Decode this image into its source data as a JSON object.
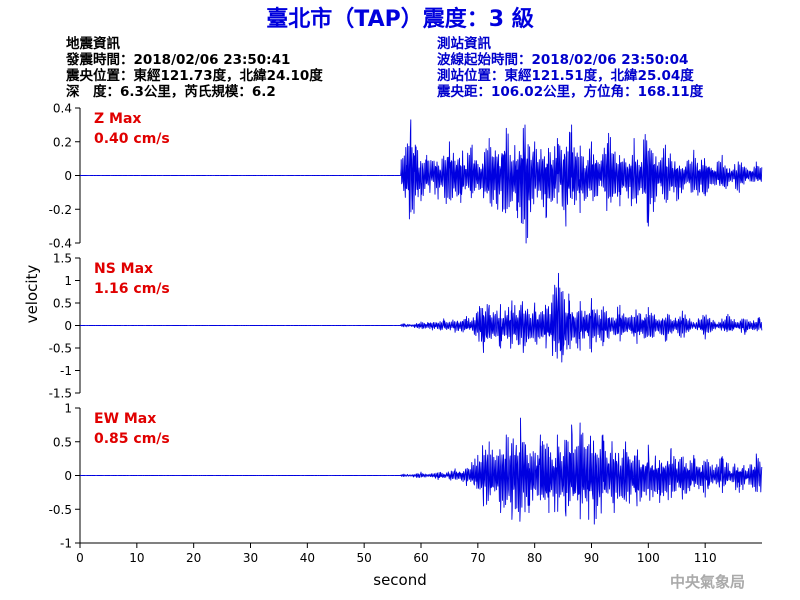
{
  "header": {
    "title": "臺北市（TAP）震度：3 級",
    "left": {
      "heading": "地震資訊",
      "time": "發震時間：2018/02/06 23:50:41",
      "epicenter": "震央位置：東經121.73度，北緯24.10度",
      "depth": "深　度：6.3公里，芮氏規模：6.2"
    },
    "right": {
      "heading": "測站資訊",
      "onset": "波線起始時間：2018/02/06 23:50:04",
      "station": "測站位置：東經121.51度，北緯25.04度",
      "distance": "震央距：106.02公里，方位角：168.11度"
    }
  },
  "watermark": "中央氣象局",
  "colors": {
    "trace": "#0000e0",
    "label": "#e00000",
    "title": "#0000dd",
    "right_info": "#0000cc",
    "axis": "#000000"
  },
  "chart_data": {
    "type": "line",
    "xlabel": "second",
    "ylabel": "velocity",
    "xlim": [
      0,
      120
    ],
    "xticks": [
      0,
      10,
      20,
      30,
      40,
      50,
      60,
      70,
      80,
      90,
      100,
      110
    ],
    "onset_time": 56.5,
    "panels": [
      {
        "name": "Z Max",
        "max_label": "0.40 cm/s",
        "ylim": [
          -0.4,
          0.4
        ],
        "yticks": [
          -0.4,
          -0.2,
          0,
          0.2,
          0.4
        ],
        "ytick_labels": [
          "-0.4",
          "-0.2",
          "0",
          "0.2",
          "0.4"
        ],
        "peaks": [
          [
            56.5,
            0.04
          ],
          [
            57.0,
            -0.04
          ],
          [
            57.5,
            0.06
          ],
          [
            58.2,
            0.33
          ],
          [
            58.5,
            -0.2
          ],
          [
            59.0,
            0.18
          ],
          [
            60.0,
            -0.15
          ],
          [
            61.0,
            0.12
          ],
          [
            63.0,
            -0.14
          ],
          [
            65.0,
            0.2
          ],
          [
            67.0,
            -0.16
          ],
          [
            69.0,
            0.18
          ],
          [
            72.0,
            0.22
          ],
          [
            73.5,
            -0.2
          ],
          [
            75.0,
            0.28
          ],
          [
            77.0,
            -0.25
          ],
          [
            78.0,
            0.28
          ],
          [
            78.5,
            -0.4
          ],
          [
            80.0,
            0.2
          ],
          [
            82.0,
            -0.25
          ],
          [
            84.0,
            0.22
          ],
          [
            85.5,
            -0.3
          ],
          [
            86.5,
            0.3
          ],
          [
            88.0,
            -0.22
          ],
          [
            90.0,
            0.2
          ],
          [
            93.0,
            0.25
          ],
          [
            95.0,
            -0.18
          ],
          [
            97.5,
            0.22
          ],
          [
            100.0,
            -0.3
          ],
          [
            103.0,
            0.18
          ],
          [
            105.0,
            -0.15
          ],
          [
            108.0,
            0.15
          ],
          [
            110.0,
            -0.12
          ],
          [
            113.0,
            0.12
          ],
          [
            116.0,
            -0.1
          ],
          [
            119.0,
            0.08
          ]
        ]
      },
      {
        "name": "NS Max",
        "max_label": "1.16 cm/s",
        "ylim": [
          -1.5,
          1.5
        ],
        "yticks": [
          -1.5,
          -1,
          -0.5,
          0,
          0.5,
          1,
          1.5
        ],
        "ytick_labels": [
          "-1.5",
          "-1",
          "-0.5",
          "0",
          "0.5",
          "1",
          "1.5"
        ],
        "peaks": [
          [
            57.0,
            0.04
          ],
          [
            60.0,
            0.08
          ],
          [
            62.0,
            -0.1
          ],
          [
            64.0,
            0.15
          ],
          [
            66.0,
            -0.15
          ],
          [
            68.0,
            0.2
          ],
          [
            70.0,
            0.3
          ],
          [
            71.0,
            -0.6
          ],
          [
            72.0,
            0.45
          ],
          [
            74.0,
            -0.5
          ],
          [
            76.0,
            0.55
          ],
          [
            78.0,
            -0.6
          ],
          [
            80.0,
            0.5
          ],
          [
            82.0,
            -0.5
          ],
          [
            83.0,
            0.5
          ],
          [
            84.2,
            1.16
          ],
          [
            85.0,
            -0.65
          ],
          [
            86.0,
            0.7
          ],
          [
            88.0,
            -0.55
          ],
          [
            90.0,
            0.6
          ],
          [
            92.0,
            -0.45
          ],
          [
            95.0,
            0.45
          ],
          [
            98.0,
            -0.4
          ],
          [
            100.0,
            0.4
          ],
          [
            103.0,
            -0.35
          ],
          [
            106.0,
            0.32
          ],
          [
            110.0,
            -0.3
          ],
          [
            114.0,
            0.25
          ],
          [
            117.0,
            -0.2
          ],
          [
            119.5,
            0.18
          ]
        ]
      },
      {
        "name": "EW Max",
        "max_label": "0.85 cm/s",
        "ylim": [
          -1,
          1
        ],
        "yticks": [
          -1,
          -0.5,
          0,
          0.5,
          1
        ],
        "ytick_labels": [
          "-1",
          "-0.5",
          "0",
          "0.5",
          "1"
        ],
        "peaks": [
          [
            57.0,
            0.02
          ],
          [
            60.0,
            0.05
          ],
          [
            63.0,
            -0.06
          ],
          [
            66.0,
            0.1
          ],
          [
            68.0,
            -0.15
          ],
          [
            70.0,
            0.3
          ],
          [
            71.0,
            -0.45
          ],
          [
            72.0,
            0.5
          ],
          [
            74.0,
            -0.55
          ],
          [
            75.0,
            0.6
          ],
          [
            76.0,
            -0.65
          ],
          [
            77.5,
            0.85
          ],
          [
            79.0,
            -0.55
          ],
          [
            81.0,
            0.6
          ],
          [
            82.5,
            -0.55
          ],
          [
            84.0,
            0.6
          ],
          [
            85.5,
            -0.6
          ],
          [
            86.5,
            0.75
          ],
          [
            88.0,
            0.78
          ],
          [
            89.5,
            -0.65
          ],
          [
            90.5,
            -0.72
          ],
          [
            92.0,
            0.6
          ],
          [
            94.0,
            -0.55
          ],
          [
            96.0,
            0.5
          ],
          [
            98.0,
            -0.45
          ],
          [
            100.0,
            0.45
          ],
          [
            102.0,
            -0.4
          ],
          [
            104.0,
            0.4
          ],
          [
            106.0,
            -0.35
          ],
          [
            108.0,
            0.3
          ],
          [
            110.0,
            -0.32
          ],
          [
            113.0,
            0.28
          ],
          [
            116.0,
            -0.25
          ],
          [
            119.0,
            0.32
          ]
        ]
      }
    ]
  }
}
